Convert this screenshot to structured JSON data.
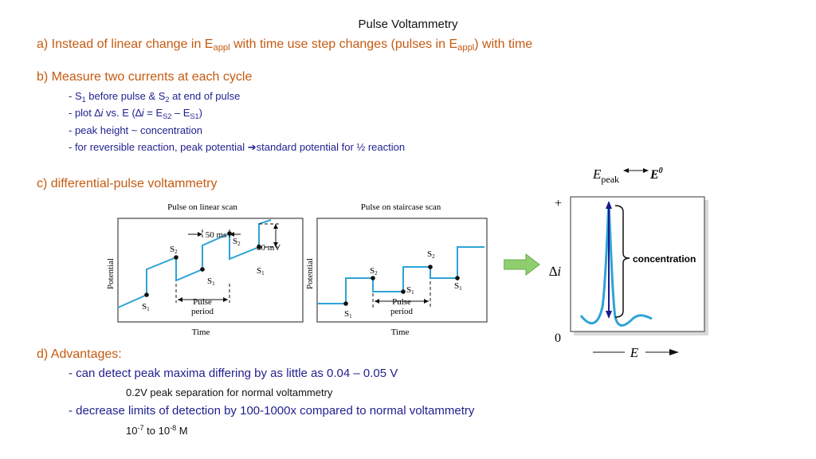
{
  "title": "Pulse  Voltammetry",
  "section_a": {
    "p1": "a) Instead of linear change in E",
    "sub1": "appl",
    "p2": " with time use step changes (pulses in E",
    "sub2": "appl",
    "p3": ") with time"
  },
  "section_b": {
    "heading": "b) Measure two currents at each cycle",
    "bullet1": {
      "dash": "- ",
      "s1": "S",
      "s1_sub": "1",
      "mid": " before pulse & S",
      "s2_sub": "2",
      "end": " at end of pulse"
    },
    "bullet2": {
      "a": "- plot ",
      "delta": "∆",
      "i": "i",
      "vs": " vs. E  (",
      "delta2": "∆",
      "i2": "i",
      "eq": " = E",
      "sub1": "S2",
      "minus": " – E",
      "sub2": "S1",
      "close": ")"
    },
    "bullet3": "- peak height ~ concentration",
    "bullet4_pre": "- for reversible reaction, peak potential ",
    "bullet4_arrow": "➔",
    "bullet4_post": "standard potential for ½ reaction"
  },
  "section_c": {
    "heading": "c) differential-pulse voltammetry"
  },
  "section_d": {
    "heading": "d) Advantages:",
    "item1": "- can detect peak maxima differing by as little as 0.04 – 0.05 V",
    "item1_sub_glyph": "",
    "item1_sub": "0.2V peak separation for normal voltammetry",
    "item2": "- decrease limits of detection by 100-1000x compared to normal voltammetry",
    "item2_sub_glyph": "",
    "item2_sub_a": "10",
    "item2_sub_exp1": "-7",
    "item2_sub_b": " to 10",
    "item2_sub_exp2": "-8",
    "item2_sub_c": " M"
  },
  "figure_linear": {
    "title": "Pulse on linear scan",
    "ylabel": "Potential",
    "xlabel": "Time",
    "ms_label": "50 ms",
    "mv_label": "50 mV",
    "s1": "S",
    "s2": "S",
    "sub1": "1",
    "sub2": "2",
    "period_1": "Pulse",
    "period_2": "period"
  },
  "figure_staircase": {
    "title": "Pulse on staircase scan",
    "ylabel": "Potential",
    "xlabel": "Time",
    "s1": "S",
    "s2": "S",
    "sub1": "1",
    "sub2": "2",
    "period_1": "Pulse",
    "period_2": "period"
  },
  "figure_peak": {
    "epeak_E": "E",
    "epeak_sub": "peak",
    "e0_E": "E",
    "e0_sup": "0",
    "plus": "+",
    "zero": "0",
    "delta_i": "∆i",
    "x_E": "E",
    "concentration": "concentration"
  },
  "colors": {
    "heading": "#c55a11",
    "bullet": "#1f1f8f",
    "trace": "#2ea3d6",
    "arrow": "#8fce6e",
    "peak_arrow": "#1a1a8c"
  }
}
